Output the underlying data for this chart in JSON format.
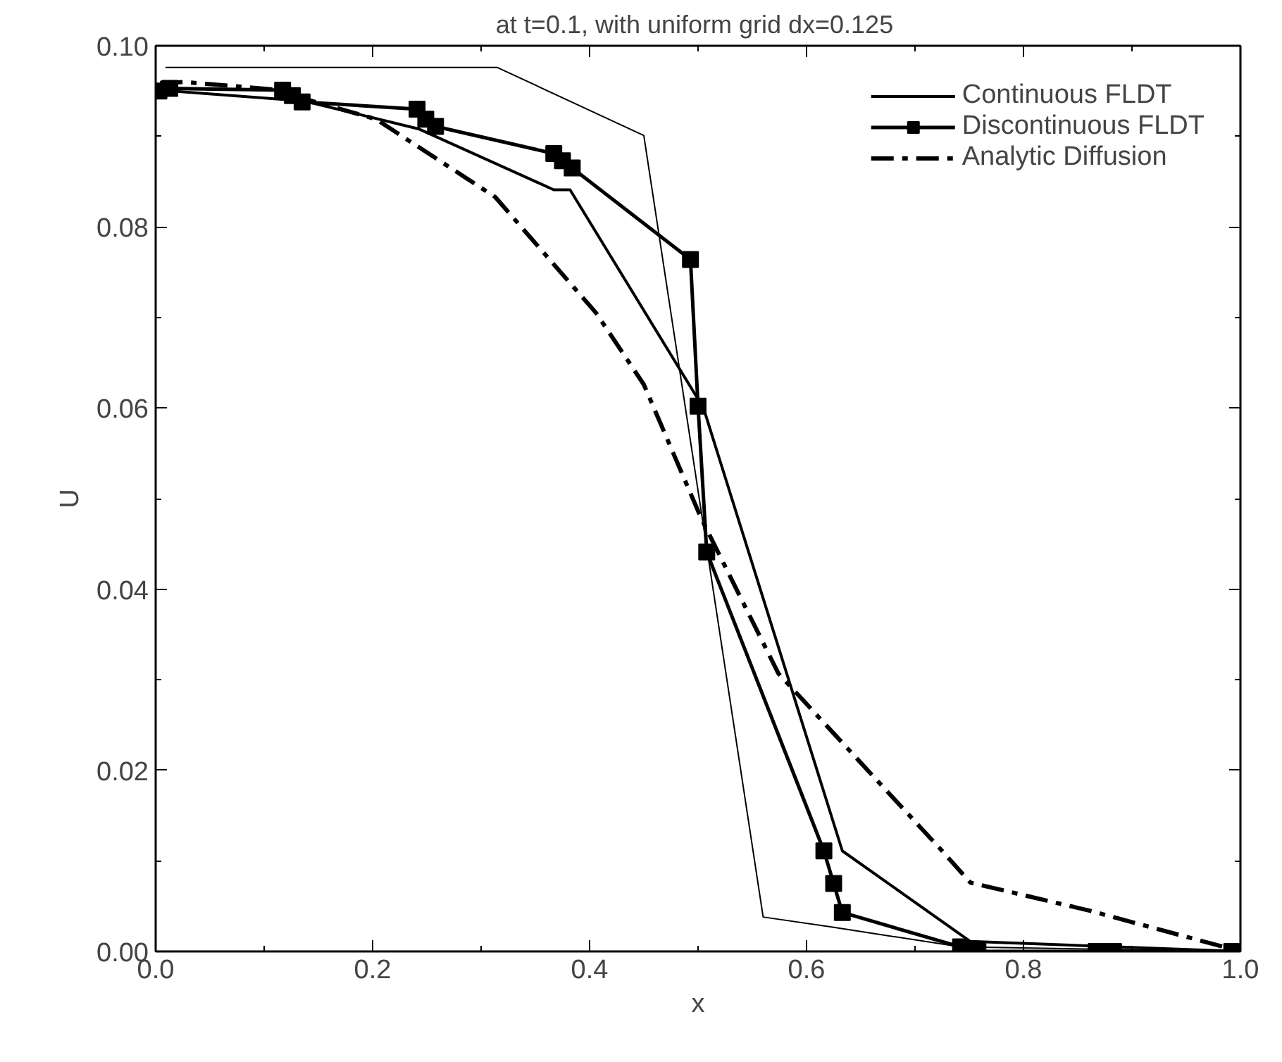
{
  "chart_data": {
    "type": "line",
    "title": "at t=0.1,  with uniform grid dx=0.125",
    "xlabel": "x",
    "ylabel": "U",
    "xlim": [
      0,
      1
    ],
    "ylim": [
      0,
      0.1
    ],
    "xticks": [
      {
        "value": 0,
        "label": "0.0"
      },
      {
        "value": 0.1,
        "label": null
      },
      {
        "value": 0.2,
        "label": "0.2"
      },
      {
        "value": 0.3,
        "label": null
      },
      {
        "value": 0.4,
        "label": "0.4"
      },
      {
        "value": 0.5,
        "label": null
      },
      {
        "value": 0.6,
        "label": "0.6"
      },
      {
        "value": 0.7,
        "label": null
      },
      {
        "value": 0.8,
        "label": "0.8"
      },
      {
        "value": 0.9,
        "label": null
      },
      {
        "value": 1,
        "label": "1.0"
      }
    ],
    "yticks": [
      {
        "value": 0,
        "label": "0.00"
      },
      {
        "value": 0.01,
        "label": null
      },
      {
        "value": 0.02,
        "label": "0.02"
      },
      {
        "value": 0.03,
        "label": null
      },
      {
        "value": 0.04,
        "label": "0.04"
      },
      {
        "value": 0.05,
        "label": null
      },
      {
        "value": 0.06,
        "label": "0.06"
      },
      {
        "value": 0.07,
        "label": null
      },
      {
        "value": 0.08,
        "label": "0.08"
      },
      {
        "value": 0.09,
        "label": null
      },
      {
        "value": 0.1,
        "label": "0.10"
      }
    ],
    "grid": false,
    "legend": "top right",
    "series": [
      {
        "color": "#000000",
        "line_style": "solid",
        "marker": "none",
        "x": [
          0.009,
          0.315,
          0.45,
          0.56,
          0.623,
          0.742,
          1.0
        ],
        "values": [
          0.0976,
          0.0976,
          0.0901,
          0.0038,
          0.0027,
          0.0005,
          0.0
        ]
      },
      {
        "name": "Continuous FLDT",
        "color": "#000000",
        "line_style": "solid",
        "marker": "none",
        "x": [
          0.004,
          0.137,
          0.243,
          0.367,
          0.382,
          0.505,
          0.633,
          0.751,
          1.0
        ],
        "values": [
          0.0951,
          0.0939,
          0.0908,
          0.0841,
          0.0841,
          0.06,
          0.0111,
          0.0011,
          0.0
        ]
      },
      {
        "name": "Discontinuous FLDT",
        "color": "#000000",
        "line_style": "solid",
        "marker": "square",
        "x": [
          0.003,
          0.013,
          0.117,
          0.126,
          0.135,
          0.241,
          0.249,
          0.258,
          0.367,
          0.375,
          0.384,
          0.493,
          0.5,
          0.508,
          0.616,
          0.625,
          0.633,
          0.742,
          0.75,
          0.758,
          0.867,
          0.875,
          0.883,
          0.992,
          1.0
        ],
        "values": [
          0.095,
          0.0953,
          0.0951,
          0.0945,
          0.0938,
          0.093,
          0.0919,
          0.0911,
          0.0881,
          0.0873,
          0.0865,
          0.0764,
          0.0602,
          0.0441,
          0.0111,
          0.0075,
          0.0043,
          0.0005,
          0.0002,
          0.0,
          0.0,
          0.0,
          0.0,
          0.0,
          0.0
        ]
      },
      {
        "name": "Analytic Diffusion",
        "color": "#000000",
        "line_style": "dashdot",
        "marker": "none",
        "x": [
          0.004,
          0.026,
          0.106,
          0.203,
          0.313,
          0.406,
          0.45,
          0.503,
          0.574,
          0.725,
          0.751,
          0.861,
          1.0
        ],
        "values": [
          0.0959,
          0.096,
          0.0952,
          0.0919,
          0.0833,
          0.0705,
          0.0626,
          0.0478,
          0.0307,
          0.0111,
          0.0076,
          0.0045,
          0.0
        ]
      }
    ]
  }
}
